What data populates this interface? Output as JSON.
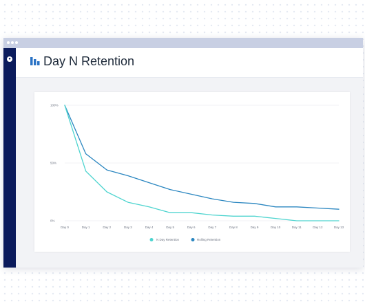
{
  "header": {
    "title": "Day N Retention",
    "icon": "bar-chart-icon"
  },
  "sidebar": {
    "logo_icon": "app-logo-icon"
  },
  "colors": {
    "sidebar": "#0b1b5c",
    "series_n_day": "#4dd4cf",
    "series_rolling": "#2a86c0",
    "header_icon": "#2b73c5"
  },
  "chart_data": {
    "type": "line",
    "x": [
      "Day 0",
      "Day 1",
      "Day 2",
      "Day 3",
      "Day 4",
      "Day 5",
      "Day 6",
      "Day 7",
      "Day 8",
      "Day 9",
      "Day 10",
      "Day 11",
      "Day 12",
      "Day 13"
    ],
    "y_ticks": [
      "100%",
      "50%",
      "0%"
    ],
    "ylim": [
      0,
      100
    ],
    "grid": true,
    "legend_position": "bottom",
    "series": [
      {
        "name": "N Day Retention",
        "color": "#4dd4cf",
        "values": [
          100,
          43,
          25,
          16,
          12,
          7,
          7,
          5,
          4,
          4,
          2,
          0,
          0,
          0
        ]
      },
      {
        "name": "Rolling Retention",
        "color": "#2a86c0",
        "values": [
          100,
          58,
          44,
          39,
          33,
          27,
          23,
          19,
          16,
          15,
          12,
          12,
          11,
          10
        ]
      }
    ]
  }
}
